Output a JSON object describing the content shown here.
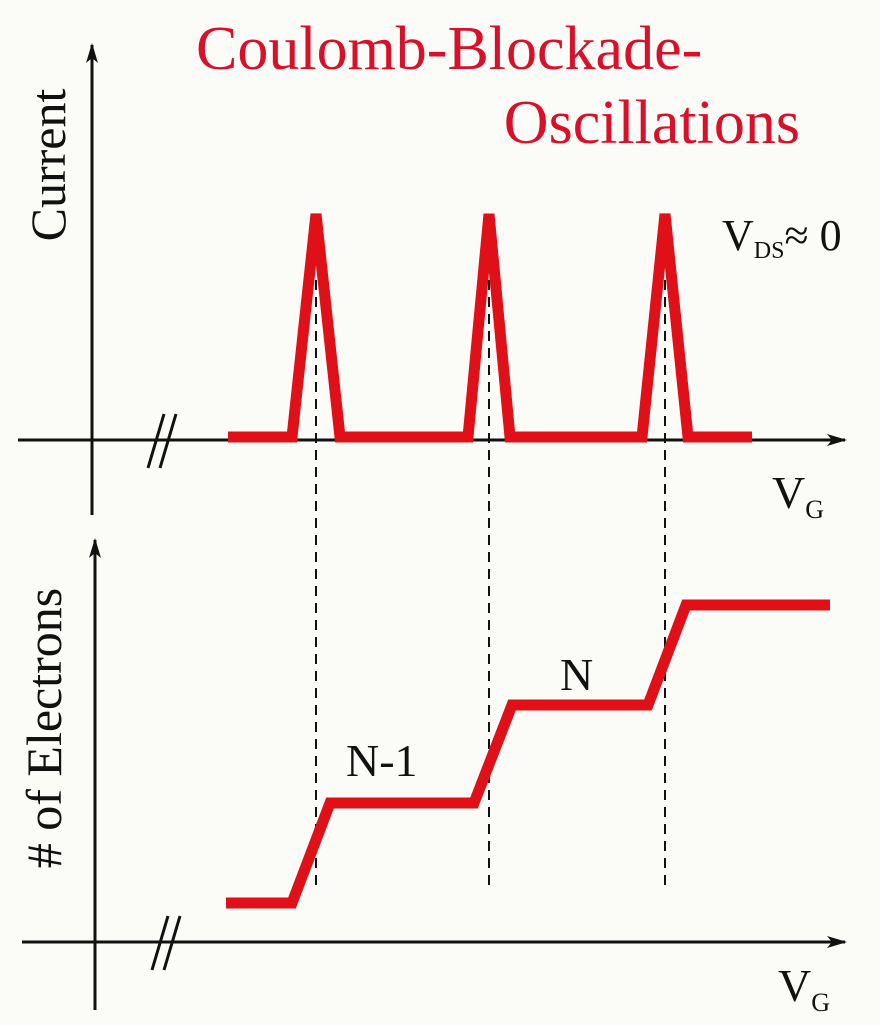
{
  "title": {
    "line1": "Coulomb-Blockade-",
    "line2": "Oscillations",
    "color": "#d8102a"
  },
  "top_plot": {
    "ylabel": "Current",
    "xlabel_main": "V",
    "xlabel_sub": "G",
    "condition_main": "V",
    "condition_sub": "DS",
    "condition_tail": "≈ 0",
    "peak_count": 3
  },
  "bottom_plot": {
    "ylabel": "# of Electrons",
    "xlabel_main": "V",
    "xlabel_sub": "G",
    "step_labels": [
      "N-1",
      "N"
    ]
  },
  "colors": {
    "curve": "#e01018",
    "axis": "#111111",
    "guide": "#111111",
    "background": "#fbfbf7"
  }
}
